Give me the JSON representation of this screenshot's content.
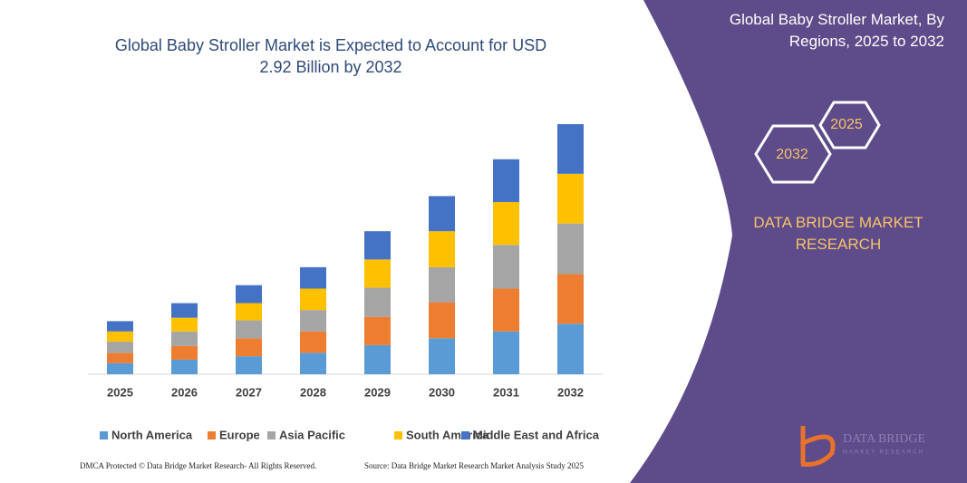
{
  "chart_data": {
    "type": "bar",
    "stacked": true,
    "title": "Global Baby Stroller Market is Expected to Account for USD 2.92 Billion by 2032",
    "categories": [
      "2025",
      "2026",
      "2027",
      "2028",
      "2029",
      "2030",
      "2031",
      "2032"
    ],
    "series": [
      {
        "name": "North America",
        "color": "#5b9bd5",
        "values": [
          0.13,
          0.17,
          0.21,
          0.25,
          0.34,
          0.42,
          0.5,
          0.59
        ]
      },
      {
        "name": "Europe",
        "color": "#ed7d31",
        "values": [
          0.12,
          0.16,
          0.21,
          0.25,
          0.33,
          0.42,
          0.5,
          0.58
        ]
      },
      {
        "name": "Asia Pacific",
        "color": "#a5a5a5",
        "values": [
          0.13,
          0.17,
          0.21,
          0.25,
          0.34,
          0.41,
          0.51,
          0.59
        ]
      },
      {
        "name": "South America",
        "color": "#ffc000",
        "values": [
          0.12,
          0.16,
          0.2,
          0.25,
          0.33,
          0.42,
          0.5,
          0.58
        ]
      },
      {
        "name": "Middle East and Africa",
        "color": "#4472c4",
        "values": [
          0.12,
          0.17,
          0.21,
          0.25,
          0.33,
          0.41,
          0.5,
          0.58
        ]
      }
    ]
  },
  "panel": {
    "title": "Global Baby Stroller Market, By Regions, 2025 to 2032",
    "hexagons": [
      "2025",
      "2032"
    ],
    "brand": "DATA BRIDGE MARKET RESEARCH",
    "logo": {
      "name": "DATA BRIDGE",
      "tagline": "MARKET RESEARCH"
    }
  },
  "footer": {
    "left": "DMCA Protected © Data Bridge Market Research- All Rights Reserved.",
    "right": "Source: Data Bridge Market Research Market Analysis Study 2025"
  }
}
